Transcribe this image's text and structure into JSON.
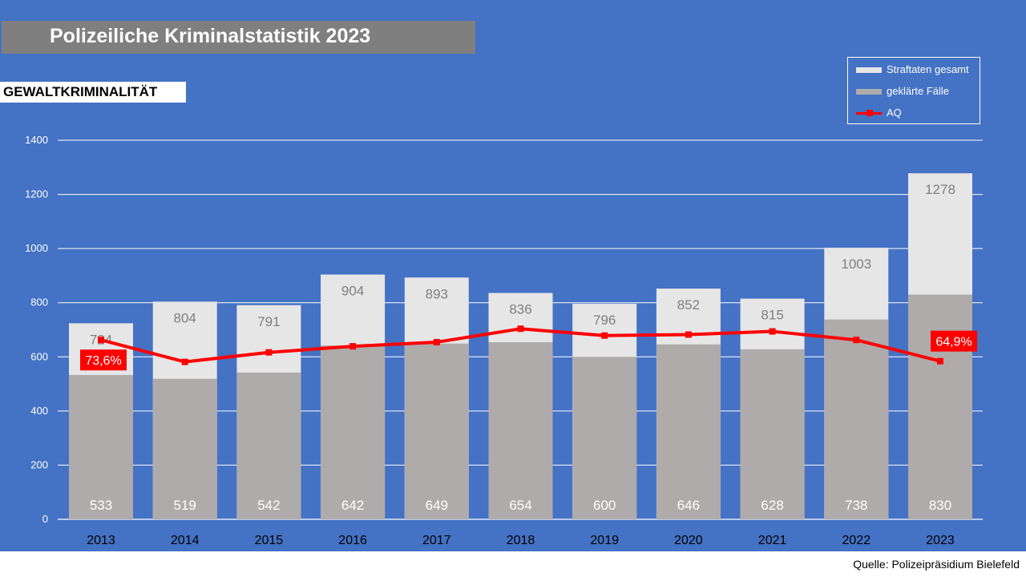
{
  "header": {
    "title": "Polizeiliche Kriminalstatistik 2023",
    "subtitle": "GEWALTKRIMINALITÄT"
  },
  "footer": {
    "source": "Quelle: Polizeipräsidium Bielefeld"
  },
  "colors": {
    "background": "#4472C4",
    "total_bar": "#E6E6E6",
    "solved_bar": "#AFABAB",
    "aq_line": "#FF0000",
    "axis_text": "#ffffff"
  },
  "chart_data": {
    "type": "bar",
    "stacked_overlay": true,
    "categories": [
      "2013",
      "2014",
      "2015",
      "2016",
      "2017",
      "2018",
      "2019",
      "2020",
      "2021",
      "2022",
      "2023"
    ],
    "series": [
      {
        "name": "Straftaten gesamt",
        "type": "bar",
        "values": [
          724,
          804,
          791,
          904,
          893,
          836,
          796,
          852,
          815,
          1003,
          1278
        ]
      },
      {
        "name": "geklärte Fälle",
        "type": "bar",
        "values": [
          533,
          519,
          542,
          642,
          649,
          654,
          600,
          646,
          628,
          738,
          830
        ]
      },
      {
        "name": "AQ",
        "type": "line",
        "values": [
          73.6,
          64.6,
          68.5,
          71.0,
          72.7,
          78.2,
          75.4,
          75.8,
          77.1,
          73.6,
          64.9
        ]
      }
    ],
    "aq_labels": [
      {
        "category": "2013",
        "text": "73,6%"
      },
      {
        "category": "2023",
        "text": "64,9%"
      }
    ],
    "ylim": [
      0,
      1400
    ],
    "yticks": [
      "0",
      "200",
      "400",
      "600",
      "800",
      "1000",
      "1200",
      "1400"
    ],
    "grid": true,
    "legend": "top-right"
  }
}
